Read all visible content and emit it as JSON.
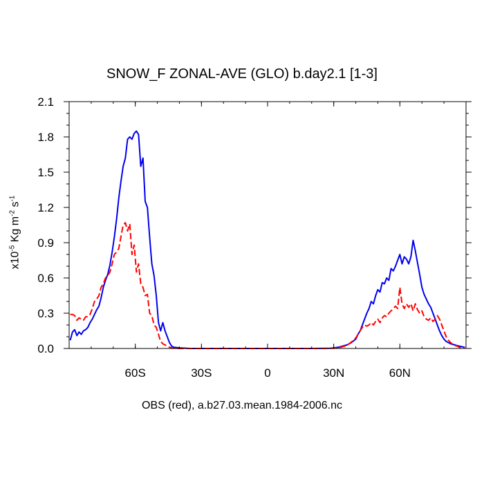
{
  "chart_data": {
    "type": "line",
    "title": "SNOW_F ZONAL-AVE (GLO) b.day2.1 [1-3]",
    "xlabel": "OBS (red), a.b27.03.mean.1984-2006.nc",
    "ylabel": {
      "prefix": "x10",
      "exp1": "-5",
      "unit": " Kg m",
      "exp2": "-2",
      "unit2": " s",
      "exp3": "-1"
    },
    "xlim": [
      -90,
      90
    ],
    "ylim": [
      0,
      2.1
    ],
    "x_ticks": [
      {
        "value": -60,
        "label": "60S"
      },
      {
        "value": -30,
        "label": "30S"
      },
      {
        "value": 0,
        "label": "0"
      },
      {
        "value": 30,
        "label": "30N"
      },
      {
        "value": 60,
        "label": "60N"
      }
    ],
    "y_ticks": [
      {
        "value": 0.0,
        "label": "0.0"
      },
      {
        "value": 0.3,
        "label": "0.3"
      },
      {
        "value": 0.6,
        "label": "0.6"
      },
      {
        "value": 0.9,
        "label": "0.9"
      },
      {
        "value": 1.2,
        "label": "1.2"
      },
      {
        "value": 1.5,
        "label": "1.5"
      },
      {
        "value": 1.8,
        "label": "1.8"
      },
      {
        "value": 2.1,
        "label": "2.1"
      }
    ],
    "grid": false,
    "series": [
      {
        "color": "#0000ee",
        "dash": "solid",
        "points": [
          [
            -89.5,
            0.07
          ],
          [
            -88.5,
            0.14
          ],
          [
            -87.5,
            0.16
          ],
          [
            -86.5,
            0.11
          ],
          [
            -85.5,
            0.14
          ],
          [
            -84.5,
            0.12
          ],
          [
            -83.5,
            0.15
          ],
          [
            -82.5,
            0.16
          ],
          [
            -81.5,
            0.18
          ],
          [
            -80.5,
            0.22
          ],
          [
            -79.5,
            0.25
          ],
          [
            -78.5,
            0.29
          ],
          [
            -77.5,
            0.33
          ],
          [
            -76.5,
            0.36
          ],
          [
            -75.5,
            0.43
          ],
          [
            -74.5,
            0.52
          ],
          [
            -73.5,
            0.58
          ],
          [
            -72.5,
            0.63
          ],
          [
            -71.5,
            0.71
          ],
          [
            -70.5,
            0.82
          ],
          [
            -69.5,
            0.95
          ],
          [
            -68.5,
            1.1
          ],
          [
            -67.5,
            1.28
          ],
          [
            -66.5,
            1.42
          ],
          [
            -65.5,
            1.55
          ],
          [
            -64.5,
            1.62
          ],
          [
            -63.5,
            1.78
          ],
          [
            -62.5,
            1.8
          ],
          [
            -61.5,
            1.78
          ],
          [
            -60.5,
            1.83
          ],
          [
            -59.5,
            1.85
          ],
          [
            -58.5,
            1.82
          ],
          [
            -57.5,
            1.55
          ],
          [
            -56.5,
            1.62
          ],
          [
            -55.5,
            1.25
          ],
          [
            -54.5,
            1.2
          ],
          [
            -53.5,
            0.95
          ],
          [
            -52.5,
            0.72
          ],
          [
            -51.5,
            0.62
          ],
          [
            -50.5,
            0.45
          ],
          [
            -49.5,
            0.22
          ],
          [
            -48.5,
            0.15
          ],
          [
            -47.5,
            0.22
          ],
          [
            -46.5,
            0.15
          ],
          [
            -45.5,
            0.1
          ],
          [
            -44.5,
            0.05
          ],
          [
            -43.5,
            0.02
          ],
          [
            -42.5,
            0.01
          ],
          [
            -40,
            0.005
          ],
          [
            -35,
            0.0
          ],
          [
            -30,
            0.0
          ],
          [
            -20,
            0.0
          ],
          [
            -10,
            0.0
          ],
          [
            0,
            0.0
          ],
          [
            10,
            0.0
          ],
          [
            20,
            0.0
          ],
          [
            28,
            0.002
          ],
          [
            30,
            0.005
          ],
          [
            32,
            0.01
          ],
          [
            34,
            0.02
          ],
          [
            36,
            0.03
          ],
          [
            38,
            0.05
          ],
          [
            40,
            0.08
          ],
          [
            41,
            0.12
          ],
          [
            42,
            0.15
          ],
          [
            43,
            0.2
          ],
          [
            44,
            0.25
          ],
          [
            45,
            0.3
          ],
          [
            46,
            0.34
          ],
          [
            47,
            0.4
          ],
          [
            48,
            0.38
          ],
          [
            49,
            0.45
          ],
          [
            50,
            0.5
          ],
          [
            51,
            0.48
          ],
          [
            52,
            0.56
          ],
          [
            53,
            0.55
          ],
          [
            54,
            0.6
          ],
          [
            55,
            0.58
          ],
          [
            56,
            0.68
          ],
          [
            57,
            0.66
          ],
          [
            58,
            0.7
          ],
          [
            59,
            0.75
          ],
          [
            60,
            0.8
          ],
          [
            61,
            0.72
          ],
          [
            62,
            0.78
          ],
          [
            63,
            0.76
          ],
          [
            64,
            0.72
          ],
          [
            65,
            0.78
          ],
          [
            66,
            0.92
          ],
          [
            67,
            0.83
          ],
          [
            68,
            0.73
          ],
          [
            69,
            0.63
          ],
          [
            70,
            0.52
          ],
          [
            71,
            0.46
          ],
          [
            72,
            0.42
          ],
          [
            73,
            0.38
          ],
          [
            74,
            0.35
          ],
          [
            75,
            0.3
          ],
          [
            76,
            0.25
          ],
          [
            77,
            0.2
          ],
          [
            78,
            0.15
          ],
          [
            79,
            0.11
          ],
          [
            80,
            0.08
          ],
          [
            81,
            0.06
          ],
          [
            82,
            0.05
          ],
          [
            83,
            0.04
          ],
          [
            84,
            0.035
          ],
          [
            85,
            0.03
          ],
          [
            86,
            0.025
          ],
          [
            87,
            0.02
          ],
          [
            88,
            0.015
          ],
          [
            89.5,
            0.01
          ]
        ]
      },
      {
        "color": "#ff0000",
        "dash": "dashed",
        "points": [
          [
            -89.5,
            0.29
          ],
          [
            -88.5,
            0.29
          ],
          [
            -87.5,
            0.28
          ],
          [
            -86.5,
            0.24
          ],
          [
            -85.5,
            0.26
          ],
          [
            -84.5,
            0.25
          ],
          [
            -83.5,
            0.24
          ],
          [
            -82.5,
            0.27
          ],
          [
            -81.5,
            0.27
          ],
          [
            -80.5,
            0.29
          ],
          [
            -79.5,
            0.34
          ],
          [
            -78.5,
            0.4
          ],
          [
            -77.5,
            0.42
          ],
          [
            -76.5,
            0.45
          ],
          [
            -75.5,
            0.52
          ],
          [
            -74.5,
            0.55
          ],
          [
            -73.5,
            0.6
          ],
          [
            -72.5,
            0.62
          ],
          [
            -71.5,
            0.65
          ],
          [
            -70.5,
            0.72
          ],
          [
            -69.5,
            0.8
          ],
          [
            -68.5,
            0.82
          ],
          [
            -67.5,
            0.85
          ],
          [
            -66.5,
            0.95
          ],
          [
            -65.5,
            1.05
          ],
          [
            -64.5,
            1.07
          ],
          [
            -63.5,
            1.0
          ],
          [
            -62.5,
            1.06
          ],
          [
            -61.5,
            0.8
          ],
          [
            -60.5,
            0.88
          ],
          [
            -59.5,
            0.65
          ],
          [
            -58.5,
            0.72
          ],
          [
            -57.5,
            0.55
          ],
          [
            -56.5,
            0.52
          ],
          [
            -55.5,
            0.45
          ],
          [
            -54.5,
            0.46
          ],
          [
            -53.5,
            0.3
          ],
          [
            -52.5,
            0.28
          ],
          [
            -51.5,
            0.2
          ],
          [
            -50.5,
            0.18
          ],
          [
            -49.5,
            0.12
          ],
          [
            -48.5,
            0.06
          ],
          [
            -47.5,
            0.04
          ],
          [
            -46.5,
            0.03
          ],
          [
            -45.5,
            0.02
          ],
          [
            -44.5,
            0.01
          ],
          [
            -42,
            0.0
          ],
          [
            -35,
            0.0
          ],
          [
            -30,
            0.0
          ],
          [
            -20,
            0.0
          ],
          [
            -10,
            0.0
          ],
          [
            0,
            0.0
          ],
          [
            10,
            0.0
          ],
          [
            20,
            0.0
          ],
          [
            30,
            0.002
          ],
          [
            33,
            0.01
          ],
          [
            35,
            0.02
          ],
          [
            37,
            0.04
          ],
          [
            39,
            0.07
          ],
          [
            40,
            0.09
          ],
          [
            41,
            0.12
          ],
          [
            42,
            0.15
          ],
          [
            43,
            0.18
          ],
          [
            44,
            0.2
          ],
          [
            45,
            0.19
          ],
          [
            46,
            0.2
          ],
          [
            47,
            0.22
          ],
          [
            48,
            0.2
          ],
          [
            49,
            0.23
          ],
          [
            50,
            0.25
          ],
          [
            51,
            0.22
          ],
          [
            52,
            0.26
          ],
          [
            53,
            0.28
          ],
          [
            54,
            0.27
          ],
          [
            55,
            0.3
          ],
          [
            56,
            0.32
          ],
          [
            57,
            0.34
          ],
          [
            58,
            0.36
          ],
          [
            59,
            0.34
          ],
          [
            60,
            0.52
          ],
          [
            61,
            0.38
          ],
          [
            62,
            0.34
          ],
          [
            63,
            0.38
          ],
          [
            64,
            0.35
          ],
          [
            65,
            0.38
          ],
          [
            66,
            0.32
          ],
          [
            67,
            0.38
          ],
          [
            68,
            0.33
          ],
          [
            69,
            0.3
          ],
          [
            70,
            0.32
          ],
          [
            71,
            0.27
          ],
          [
            72,
            0.25
          ],
          [
            73,
            0.24
          ],
          [
            74,
            0.26
          ],
          [
            75,
            0.23
          ],
          [
            76,
            0.25
          ],
          [
            77,
            0.28
          ],
          [
            78,
            0.25
          ],
          [
            79,
            0.2
          ],
          [
            80,
            0.15
          ],
          [
            81,
            0.1
          ],
          [
            82,
            0.07
          ],
          [
            83,
            0.05
          ],
          [
            84,
            0.035
          ],
          [
            85,
            0.025
          ],
          [
            86,
            0.02
          ],
          [
            87,
            0.01
          ],
          [
            88,
            0.005
          ],
          [
            89.5,
            0.003
          ]
        ]
      }
    ]
  }
}
